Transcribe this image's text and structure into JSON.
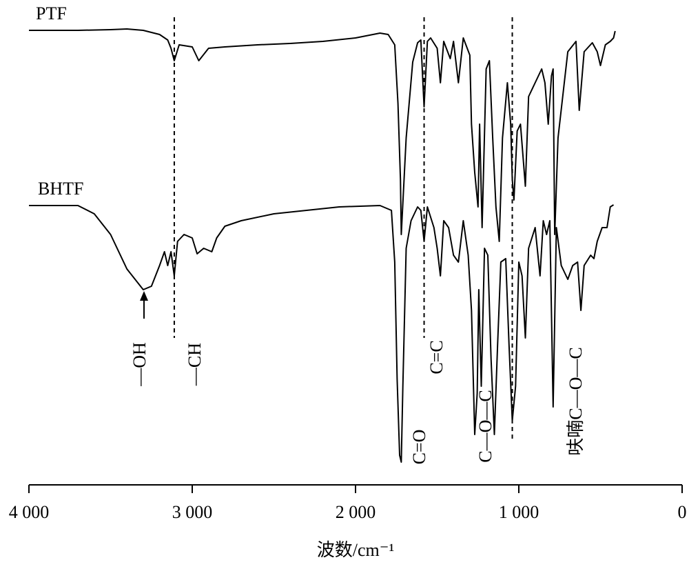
{
  "chart_data": {
    "type": "line",
    "x_label": "波数/cm⁻¹",
    "xlim": [
      4000,
      0
    ],
    "xticks": [
      {
        "value": 4000,
        "label": "4 000"
      },
      {
        "value": 3000,
        "label": "3 000"
      },
      {
        "value": 2000,
        "label": "2 000"
      },
      {
        "value": 1000,
        "label": "1 000"
      },
      0
    ],
    "ylim": [
      0,
      700
    ],
    "reference_lines": [
      3110,
      1580,
      1040
    ],
    "annotations": [
      "—OH",
      "—CH",
      "C=C",
      "C=O",
      "C—O—C",
      "呋喃C—O—C"
    ],
    "series": [
      {
        "name": "PTF",
        "color": "#000000",
        "x": [
          4000,
          3700,
          3500,
          3400,
          3300,
          3200,
          3150,
          3130,
          3110,
          3080,
          3000,
          2960,
          2900,
          2800,
          2600,
          2400,
          2200,
          2000,
          1850,
          1800,
          1760,
          1740,
          1725,
          1720,
          1690,
          1650,
          1620,
          1600,
          1580,
          1560,
          1540,
          1500,
          1480,
          1460,
          1420,
          1400,
          1370,
          1340,
          1300,
          1290,
          1270,
          1250,
          1240,
          1225,
          1200,
          1180,
          1160,
          1140,
          1120,
          1100,
          1070,
          1050,
          1040,
          1030,
          1010,
          990,
          960,
          940,
          900,
          860,
          840,
          820,
          800,
          790,
          780,
          760,
          700,
          650,
          630,
          600,
          550,
          520,
          500,
          470,
          440,
          420,
          410
        ],
        "values": [
          659,
          659,
          660,
          661,
          659,
          653,
          645,
          633,
          615,
          638,
          635,
          615,
          633,
          635,
          638,
          640,
          643,
          648,
          655,
          653,
          638,
          553,
          443,
          363,
          503,
          613,
          641,
          645,
          548,
          643,
          648,
          633,
          583,
          643,
          618,
          643,
          583,
          648,
          623,
          523,
          453,
          403,
          523,
          373,
          603,
          615,
          503,
          403,
          353,
          503,
          583,
          523,
          443,
          413,
          513,
          523,
          433,
          563,
          583,
          603,
          583,
          523,
          593,
          603,
          363,
          503,
          628,
          643,
          543,
          628,
          641,
          628,
          608,
          638,
          643,
          648,
          658
        ]
      },
      {
        "name": "BHTF",
        "color": "#000000",
        "x": [
          4000,
          3700,
          3600,
          3500,
          3400,
          3300,
          3250,
          3200,
          3170,
          3150,
          3130,
          3110,
          3090,
          3050,
          3000,
          2970,
          2930,
          2880,
          2850,
          2800,
          2700,
          2500,
          2300,
          2100,
          1850,
          1780,
          1760,
          1745,
          1730,
          1720,
          1710,
          1690,
          1660,
          1620,
          1600,
          1580,
          1560,
          1520,
          1500,
          1480,
          1460,
          1430,
          1400,
          1370,
          1340,
          1310,
          1290,
          1270,
          1255,
          1245,
          1230,
          1210,
          1190,
          1170,
          1150,
          1130,
          1110,
          1080,
          1060,
          1040,
          1020,
          1000,
          980,
          960,
          940,
          900,
          870,
          850,
          830,
          810,
          790,
          770,
          740,
          700,
          670,
          640,
          620,
          600,
          560,
          540,
          520,
          490,
          460,
          440,
          420
        ],
        "values": [
          405,
          405,
          393,
          363,
          313,
          283,
          288,
          318,
          338,
          318,
          338,
          303,
          353,
          363,
          358,
          335,
          343,
          338,
          358,
          375,
          383,
          393,
          398,
          403,
          405,
          398,
          323,
          153,
          43,
          33,
          143,
          343,
          383,
          403,
          398,
          353,
          403,
          373,
          343,
          303,
          383,
          373,
          333,
          323,
          383,
          333,
          253,
          73,
          133,
          283,
          143,
          343,
          333,
          183,
          73,
          203,
          323,
          328,
          203,
          93,
          143,
          323,
          303,
          213,
          343,
          373,
          303,
          383,
          363,
          383,
          113,
          373,
          318,
          298,
          318,
          323,
          253,
          318,
          333,
          328,
          353,
          373,
          373,
          403,
          406
        ]
      }
    ]
  }
}
